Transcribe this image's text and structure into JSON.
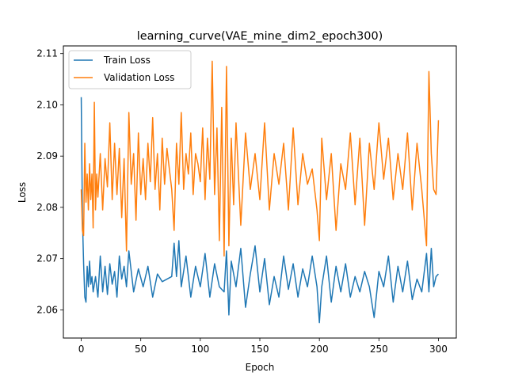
{
  "chart_data": {
    "type": "line",
    "title": "learning_curve(VAE_mine_dim2_epoch300)",
    "xlabel": "Epoch",
    "ylabel": "Loss",
    "xlim": [
      -15,
      315
    ],
    "ylim": [
      2.0545,
      2.1115
    ],
    "xticks": [
      0,
      50,
      100,
      150,
      200,
      250,
      300
    ],
    "xtick_labels": [
      "0",
      "50",
      "100",
      "150",
      "200",
      "250",
      "300"
    ],
    "yticks": [
      2.06,
      2.07,
      2.08,
      2.09,
      2.1,
      2.11
    ],
    "ytick_labels": [
      "2.06",
      "2.07",
      "2.08",
      "2.09",
      "2.10",
      "2.11"
    ],
    "grid": false,
    "legend_position": "upper-left",
    "series": [
      {
        "name": "Train Loss",
        "color": "#1f77b4",
        "x": [
          0,
          1,
          2,
          3,
          4,
          5,
          6,
          7,
          8,
          9,
          10,
          12,
          14,
          16,
          18,
          20,
          22,
          24,
          26,
          28,
          30,
          32,
          34,
          36,
          38,
          40,
          44,
          48,
          52,
          56,
          60,
          64,
          68,
          72,
          76,
          78,
          80,
          82,
          84,
          88,
          92,
          96,
          100,
          104,
          108,
          112,
          116,
          120,
          122,
          124,
          126,
          130,
          134,
          138,
          142,
          146,
          150,
          154,
          158,
          162,
          166,
          170,
          174,
          178,
          182,
          186,
          190,
          194,
          198,
          200,
          202,
          206,
          210,
          214,
          218,
          222,
          226,
          230,
          234,
          238,
          242,
          246,
          250,
          254,
          258,
          262,
          266,
          270,
          274,
          278,
          282,
          286,
          290,
          292,
          294,
          296,
          298,
          300
        ],
        "y": [
          2.1015,
          2.078,
          2.069,
          2.0625,
          2.0615,
          2.0685,
          2.0645,
          2.0695,
          2.065,
          2.0665,
          2.0635,
          2.0665,
          2.0625,
          2.0705,
          2.0635,
          2.0685,
          2.063,
          2.069,
          2.065,
          2.0675,
          2.0625,
          2.0705,
          2.066,
          2.0685,
          2.0645,
          2.0715,
          2.0635,
          2.068,
          2.0645,
          2.0685,
          2.0625,
          2.067,
          2.0655,
          2.066,
          2.0665,
          2.073,
          2.0665,
          2.0735,
          2.0645,
          2.0705,
          2.0625,
          2.0685,
          2.0645,
          2.071,
          2.0625,
          2.069,
          2.0645,
          2.0635,
          2.0715,
          2.059,
          2.0695,
          2.0645,
          2.072,
          2.0605,
          2.067,
          2.0725,
          2.0635,
          2.07,
          2.061,
          2.0665,
          2.0625,
          2.0705,
          2.064,
          2.069,
          2.0625,
          2.068,
          2.0645,
          2.0705,
          2.0645,
          2.0575,
          2.0645,
          2.0705,
          2.0615,
          2.0685,
          2.0635,
          2.069,
          2.0625,
          2.0665,
          2.0635,
          2.0675,
          2.0645,
          2.0585,
          2.0675,
          2.0645,
          2.0705,
          2.0615,
          2.0685,
          2.0635,
          2.0695,
          2.062,
          2.066,
          2.0635,
          2.071,
          2.0635,
          2.072,
          2.0645,
          2.0665,
          2.067
        ]
      },
      {
        "name": "Validation Loss",
        "color": "#ff7f0e",
        "x": [
          0,
          1,
          2,
          3,
          4,
          5,
          6,
          7,
          8,
          9,
          10,
          11,
          12,
          13,
          14,
          16,
          18,
          20,
          22,
          24,
          26,
          28,
          30,
          32,
          34,
          36,
          38,
          40,
          42,
          44,
          46,
          48,
          50,
          52,
          54,
          56,
          58,
          60,
          62,
          64,
          66,
          68,
          70,
          72,
          74,
          76,
          78,
          80,
          82,
          84,
          86,
          88,
          90,
          92,
          94,
          96,
          98,
          100,
          102,
          104,
          106,
          108,
          110,
          112,
          114,
          116,
          118,
          120,
          122,
          124,
          126,
          128,
          130,
          134,
          138,
          142,
          146,
          150,
          154,
          158,
          162,
          166,
          170,
          174,
          178,
          182,
          186,
          190,
          194,
          198,
          200,
          202,
          206,
          210,
          214,
          218,
          222,
          226,
          230,
          234,
          238,
          242,
          246,
          250,
          254,
          258,
          262,
          266,
          270,
          274,
          278,
          282,
          286,
          290,
          292,
          294,
          296,
          298,
          300
        ],
        "y": [
          2.0835,
          2.0755,
          2.0745,
          2.0925,
          2.081,
          2.0865,
          2.0795,
          2.0885,
          2.0815,
          2.0865,
          2.076,
          2.1005,
          2.0795,
          2.0865,
          2.082,
          2.0905,
          2.0795,
          2.0895,
          2.084,
          2.0965,
          2.0815,
          2.0925,
          2.0825,
          2.0915,
          2.078,
          2.0895,
          2.0715,
          2.0985,
          2.0845,
          2.0905,
          2.0775,
          2.0945,
          2.0825,
          2.0895,
          2.0815,
          2.0925,
          2.085,
          2.0975,
          2.0835,
          2.0905,
          2.0795,
          2.0935,
          2.0845,
          2.0915,
          2.0875,
          2.0835,
          2.0755,
          2.0925,
          2.0845,
          2.0985,
          2.0835,
          2.0905,
          2.0865,
          2.0945,
          2.0825,
          2.0905,
          2.0885,
          2.085,
          2.0955,
          2.0815,
          2.0935,
          2.0855,
          2.1085,
          2.0825,
          2.0955,
          2.0735,
          2.0995,
          2.0705,
          2.1075,
          2.0725,
          2.0935,
          2.0805,
          2.0965,
          2.0765,
          2.0945,
          2.0835,
          2.0905,
          2.0815,
          2.0965,
          2.0795,
          2.0905,
          2.0845,
          2.0925,
          2.0795,
          2.0955,
          2.0805,
          2.0905,
          2.0845,
          2.0875,
          2.0795,
          2.0735,
          2.0935,
          2.0815,
          2.0905,
          2.0755,
          2.0885,
          2.0835,
          2.0945,
          2.0805,
          2.0935,
          2.0765,
          2.0925,
          2.0835,
          2.0965,
          2.0855,
          2.0935,
          2.0815,
          2.0905,
          2.0835,
          2.0945,
          2.0795,
          2.0925,
          2.0835,
          2.0725,
          2.1065,
          2.0905,
          2.0835,
          2.0825,
          2.097
        ]
      }
    ]
  }
}
